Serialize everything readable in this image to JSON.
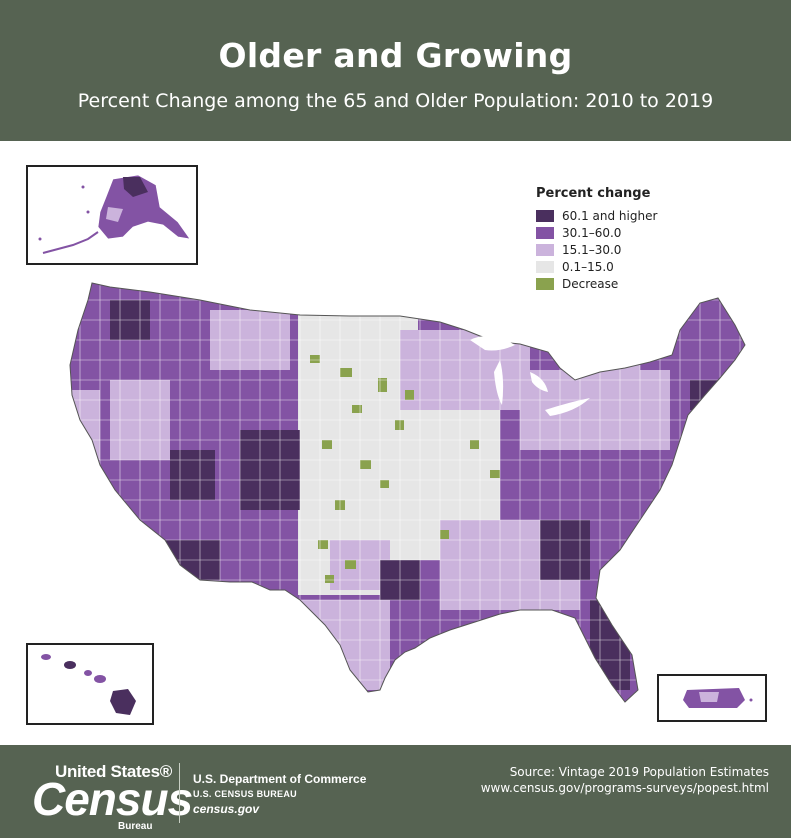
{
  "header": {
    "title": "Older and Growing",
    "subtitle": "Percent Change among the 65 and Older Population: 2010 to 2019"
  },
  "legend": {
    "title": "Percent change",
    "items": [
      {
        "label": "60.1 and higher",
        "color": "#4a2f5e"
      },
      {
        "label": "30.1–60.0",
        "color": "#8353a4"
      },
      {
        "label": "15.1–30.0",
        "color": "#cbb3dc"
      },
      {
        "label": "0.1–15.0",
        "color": "#e6e6e6"
      },
      {
        "label": "Decrease",
        "color": "#8aa24e"
      }
    ]
  },
  "map": {
    "insets": [
      "Alaska",
      "Hawaii",
      "Puerto Rico"
    ]
  },
  "footer": {
    "logo_top": "United States®",
    "logo_main": "Census",
    "logo_bureau": "Bureau",
    "dept_name": "U.S. Department of Commerce",
    "dept_bureau": "U.S. CENSUS BUREAU",
    "dept_site": "census.gov",
    "source_line": "Source: Vintage 2019 Population Estimates",
    "source_url": "www.census.gov/programs-surveys/popest.html"
  }
}
